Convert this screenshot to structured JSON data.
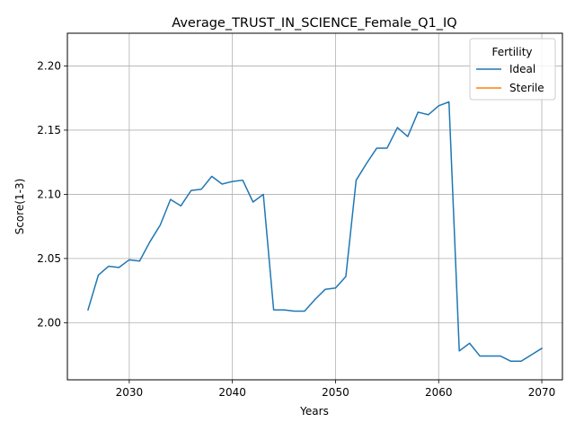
{
  "chart_data": {
    "type": "line",
    "title": "Average_TRUST_IN_SCIENCE_Female_Q1_IQ",
    "xlabel": "Years",
    "ylabel": "Score(1-3)",
    "xlim": [
      2024,
      2072
    ],
    "ylim": [
      1.9555,
      2.2255
    ],
    "xticks": [
      2030,
      2040,
      2050,
      2060,
      2070
    ],
    "yticks": [
      2.0,
      2.05,
      2.1,
      2.15,
      2.2
    ],
    "ytick_labels": [
      "2.00",
      "2.05",
      "2.10",
      "2.15",
      "2.20"
    ],
    "grid": true,
    "legend": {
      "title": "Fertility",
      "location": "top-right"
    },
    "series": [
      {
        "name": "Ideal",
        "color": "#1f77b4",
        "x": [
          2026,
          2027,
          2028,
          2029,
          2030,
          2031,
          2032,
          2033,
          2034,
          2035,
          2036,
          2037,
          2038,
          2039,
          2040,
          2041,
          2042,
          2043,
          2044,
          2045,
          2046,
          2047,
          2048,
          2049,
          2050,
          2051,
          2052,
          2053,
          2054,
          2055,
          2056,
          2057,
          2058,
          2059,
          2060,
          2061,
          2062,
          2063,
          2064,
          2065,
          2066,
          2067,
          2068,
          2069,
          2070
        ],
        "values": [
          2.01,
          2.037,
          2.044,
          2.043,
          2.049,
          2.048,
          2.063,
          2.076,
          2.096,
          2.091,
          2.103,
          2.104,
          2.114,
          2.108,
          2.11,
          2.111,
          2.094,
          2.1,
          2.01,
          2.01,
          2.009,
          2.009,
          2.018,
          2.026,
          2.027,
          2.036,
          2.111,
          2.124,
          2.136,
          2.136,
          2.152,
          2.145,
          2.164,
          2.162,
          2.169,
          2.172,
          1.978,
          1.984,
          1.974,
          1.974,
          1.974,
          1.97,
          1.97,
          1.975,
          1.98
        ]
      },
      {
        "name": "Sterile",
        "color": "#ff7f0e",
        "x": [],
        "values": []
      }
    ]
  }
}
